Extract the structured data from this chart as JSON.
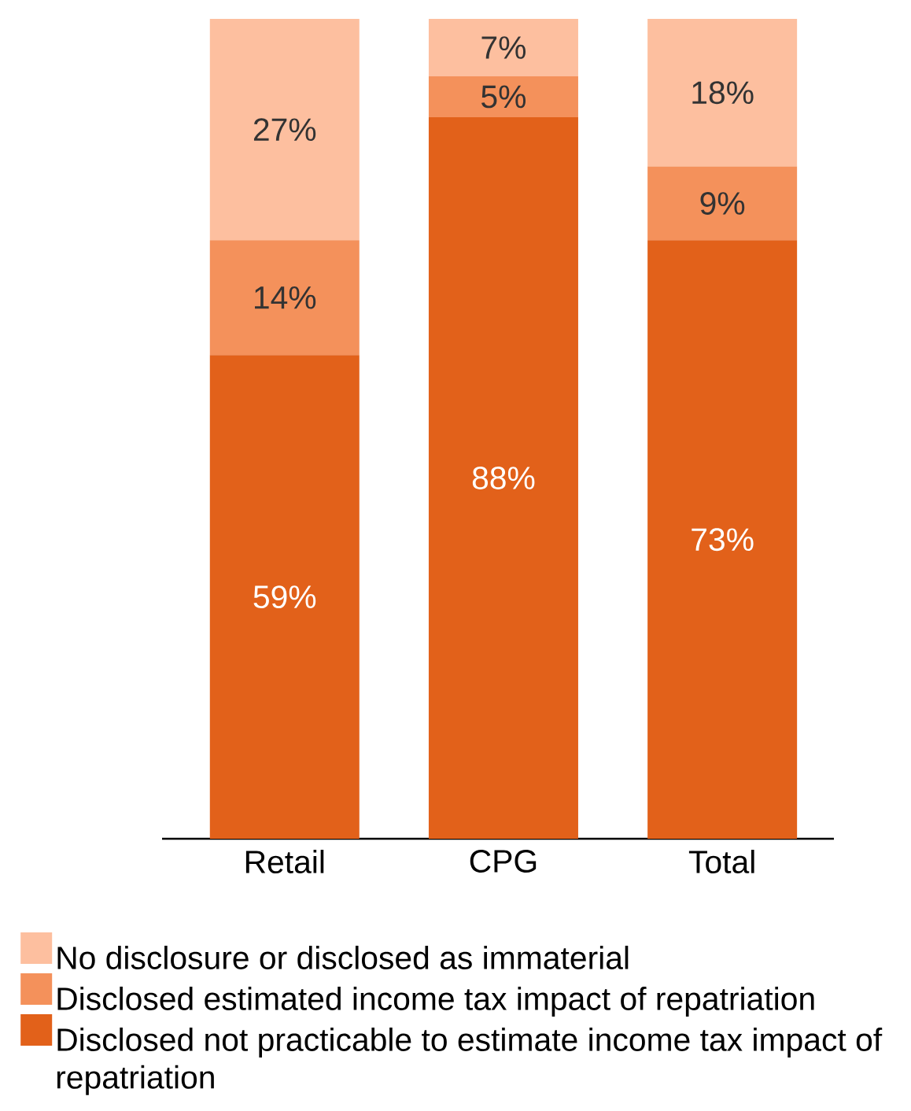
{
  "chart_data": {
    "type": "bar",
    "stacked": true,
    "categories": [
      "Retail",
      "CPG",
      "Total"
    ],
    "ylim": [
      0,
      100
    ],
    "legend": "bottom",
    "series": [
      {
        "name": "Disclosed not practicable to estimate income tax impact of repatriation",
        "color": "#e2611a",
        "values": [
          59,
          88,
          73
        ],
        "value_labels": [
          "59%",
          "88%",
          "73%"
        ]
      },
      {
        "name": "Disclosed estimated income tax impact of repatriation",
        "color": "#f4915b",
        "values": [
          14,
          5,
          9
        ],
        "value_labels": [
          "14%",
          "5%",
          "9%"
        ]
      },
      {
        "name": "No disclosure or disclosed as immaterial",
        "color": "#fdbf9f",
        "values": [
          27,
          7,
          18
        ],
        "value_labels": [
          "27%",
          "7%",
          "18%"
        ]
      }
    ]
  }
}
